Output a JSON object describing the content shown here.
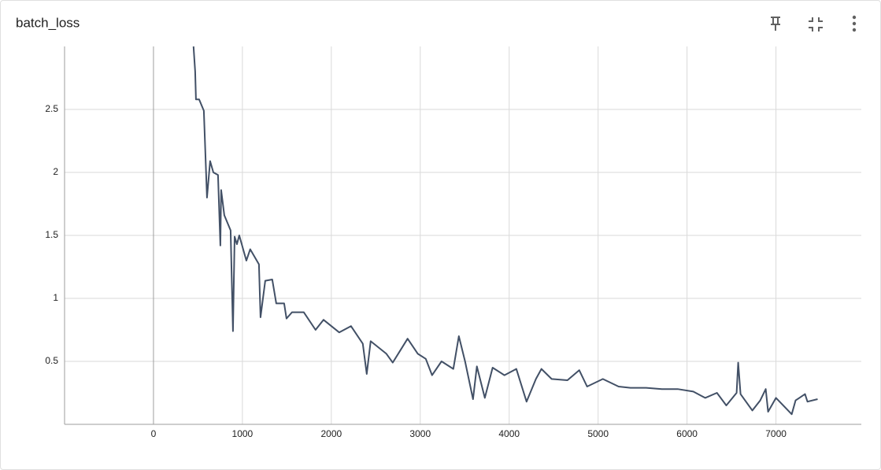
{
  "chart_data": {
    "type": "line",
    "title": "batch_loss",
    "x": [
      450,
      469,
      478,
      513,
      566,
      602,
      637,
      673,
      726,
      752,
      761,
      796,
      867,
      894,
      912,
      938,
      965,
      1044,
      1088,
      1186,
      1204,
      1257,
      1336,
      1381,
      1469,
      1496,
      1558,
      1690,
      1823,
      1912,
      2088,
      2221,
      2354,
      2398,
      2442,
      2619,
      2690,
      2858,
      2973,
      3062,
      3133,
      3239,
      3372,
      3434,
      3504,
      3593,
      3637,
      3726,
      3814,
      3947,
      4080,
      4195,
      4301,
      4363,
      4478,
      4655,
      4788,
      4876,
      5053,
      5230,
      5363,
      5540,
      5717,
      5894,
      6071,
      6204,
      6336,
      6442,
      6558,
      6575,
      6602,
      6735,
      6823,
      6885,
      6912,
      7000,
      7177,
      7221,
      7327,
      7354,
      7469
    ],
    "series": [
      {
        "name": "batch_loss",
        "color": "#425066",
        "values": [
          3.0,
          2.8,
          2.58,
          2.58,
          2.49,
          1.8,
          2.09,
          2.0,
          1.98,
          1.42,
          1.86,
          1.66,
          1.54,
          0.74,
          1.49,
          1.43,
          1.5,
          1.3,
          1.39,
          1.27,
          0.85,
          1.14,
          1.15,
          0.96,
          0.96,
          0.84,
          0.89,
          0.89,
          0.75,
          0.83,
          0.73,
          0.78,
          0.64,
          0.4,
          0.66,
          0.56,
          0.49,
          0.68,
          0.56,
          0.52,
          0.39,
          0.5,
          0.44,
          0.7,
          0.5,
          0.2,
          0.46,
          0.21,
          0.45,
          0.39,
          0.44,
          0.18,
          0.36,
          0.44,
          0.36,
          0.35,
          0.43,
          0.3,
          0.36,
          0.3,
          0.29,
          0.29,
          0.28,
          0.28,
          0.26,
          0.21,
          0.25,
          0.15,
          0.25,
          0.49,
          0.24,
          0.11,
          0.19,
          0.28,
          0.1,
          0.21,
          0.08,
          0.19,
          0.24,
          0.18,
          0.2
        ]
      }
    ],
    "xlim": [
      -1000,
      7960
    ],
    "xticks": [
      0,
      1000,
      2000,
      3000,
      4000,
      5000,
      6000,
      7000
    ],
    "ylim": [
      0,
      3
    ],
    "yticks": [
      0.5,
      1,
      1.5,
      2,
      2.5
    ],
    "grid": true
  }
}
